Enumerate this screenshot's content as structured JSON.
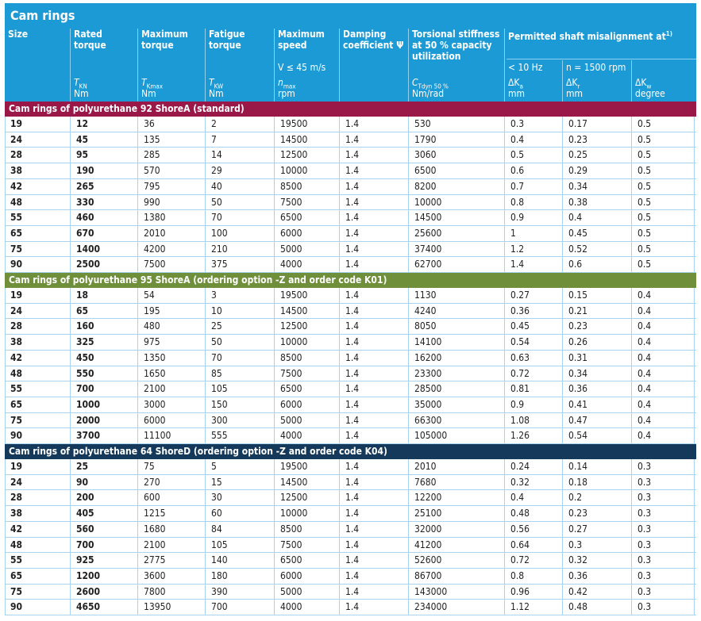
{
  "header": {
    "title": "Cam rings",
    "columns": [
      {
        "label": "Size"
      },
      {
        "label": "Rated torque",
        "symbol": "T",
        "symbol_sub": "KN",
        "unit": "Nm"
      },
      {
        "label": "Maximum torque",
        "symbol": "T",
        "symbol_sub": "Kmax",
        "unit": "Nm"
      },
      {
        "label": "Fatigue torque",
        "symbol": "T",
        "symbol_sub": "KW",
        "unit": "Nm"
      },
      {
        "label": "Maximum speed",
        "condition": "V ≤ 45 m/s",
        "symbol": "n",
        "symbol_sub": "max",
        "unit": "rpm"
      },
      {
        "label": "Damping coefficient Ψ"
      },
      {
        "label": "Torsional stiffness at 50 % capacity utilization",
        "symbol": "C",
        "symbol_sub": "Tdyn 50 %",
        "unit": "Nm/rad"
      },
      {
        "sublabel": "< 10 Hz",
        "symbol": "ΔK",
        "symbol_sub": "a",
        "unit": "mm"
      },
      {
        "sublabel": "n = 1500 rpm",
        "symbol": "ΔK",
        "symbol_sub": "r",
        "unit": "mm"
      },
      {
        "symbol": "ΔK",
        "symbol_sub": "w",
        "unit": "degree"
      }
    ],
    "group": {
      "label": "Permitted shaft misalignment at",
      "note": "1)"
    }
  },
  "sections": [
    {
      "title": "Cam rings of polyurethane 92 ShoreA (standard)",
      "rows": [
        [
          "19",
          "12",
          "36",
          "2",
          "19500",
          "1.4",
          "530",
          "0.3",
          "0.17",
          "0.5"
        ],
        [
          "24",
          "45",
          "135",
          "7",
          "14500",
          "1.4",
          "1790",
          "0.4",
          "0.23",
          "0.5"
        ],
        [
          "28",
          "95",
          "285",
          "14",
          "12500",
          "1.4",
          "3060",
          "0.5",
          "0.25",
          "0.5"
        ],
        [
          "38",
          "190",
          "570",
          "29",
          "10000",
          "1.4",
          "6500",
          "0.6",
          "0.29",
          "0.5"
        ],
        [
          "42",
          "265",
          "795",
          "40",
          "8500",
          "1.4",
          "8200",
          "0.7",
          "0.34",
          "0.5"
        ],
        [
          "48",
          "330",
          "990",
          "50",
          "7500",
          "1.4",
          "10000",
          "0.8",
          "0.38",
          "0.5"
        ],
        [
          "55",
          "460",
          "1380",
          "70",
          "6500",
          "1.4",
          "14500",
          "0.9",
          "0.4",
          "0.5"
        ],
        [
          "65",
          "670",
          "2010",
          "100",
          "6000",
          "1.4",
          "25600",
          "1",
          "0.45",
          "0.5"
        ],
        [
          "75",
          "1400",
          "4200",
          "210",
          "5000",
          "1.4",
          "37400",
          "1.2",
          "0.52",
          "0.5"
        ],
        [
          "90",
          "2500",
          "7500",
          "375",
          "4000",
          "1.4",
          "62700",
          "1.4",
          "0.6",
          "0.5"
        ]
      ]
    },
    {
      "title": "Cam rings of polyurethane 95 ShoreA (ordering option -Z and order code K01)",
      "rows": [
        [
          "19",
          "18",
          "54",
          "3",
          "19500",
          "1.4",
          "1130",
          "0.27",
          "0.15",
          "0.4"
        ],
        [
          "24",
          "65",
          "195",
          "10",
          "14500",
          "1.4",
          "4240",
          "0.36",
          "0.21",
          "0.4"
        ],
        [
          "28",
          "160",
          "480",
          "25",
          "12500",
          "1.4",
          "8050",
          "0.45",
          "0.23",
          "0.4"
        ],
        [
          "38",
          "325",
          "975",
          "50",
          "10000",
          "1.4",
          "14100",
          "0.54",
          "0.26",
          "0.4"
        ],
        [
          "42",
          "450",
          "1350",
          "70",
          "8500",
          "1.4",
          "16200",
          "0.63",
          "0.31",
          "0.4"
        ],
        [
          "48",
          "550",
          "1650",
          "85",
          "7500",
          "1.4",
          "23300",
          "0.72",
          "0.34",
          "0.4"
        ],
        [
          "55",
          "700",
          "2100",
          "105",
          "6500",
          "1.4",
          "28500",
          "0.81",
          "0.36",
          "0.4"
        ],
        [
          "65",
          "1000",
          "3000",
          "150",
          "6000",
          "1.4",
          "35000",
          "0.9",
          "0.41",
          "0.4"
        ],
        [
          "75",
          "2000",
          "6000",
          "300",
          "5000",
          "1.4",
          "66300",
          "1.08",
          "0.47",
          "0.4"
        ],
        [
          "90",
          "3700",
          "11100",
          "555",
          "4000",
          "1.4",
          "105000",
          "1.26",
          "0.54",
          "0.4"
        ]
      ]
    },
    {
      "title": "Cam rings of polyurethane 64 ShoreD (ordering option -Z and order code K04)",
      "rows": [
        [
          "19",
          "25",
          "75",
          "5",
          "19500",
          "1.4",
          "2010",
          "0.24",
          "0.14",
          "0.3"
        ],
        [
          "24",
          "90",
          "270",
          "15",
          "14500",
          "1.4",
          "7680",
          "0.32",
          "0.18",
          "0.3"
        ],
        [
          "28",
          "200",
          "600",
          "30",
          "12500",
          "1.4",
          "12200",
          "0.4",
          "0.2",
          "0.3"
        ],
        [
          "38",
          "405",
          "1215",
          "60",
          "10000",
          "1.4",
          "25100",
          "0.48",
          "0.23",
          "0.3"
        ],
        [
          "42",
          "560",
          "1680",
          "84",
          "8500",
          "1.4",
          "32000",
          "0.56",
          "0.27",
          "0.3"
        ],
        [
          "48",
          "700",
          "2100",
          "105",
          "7500",
          "1.4",
          "41200",
          "0.64",
          "0.3",
          "0.3"
        ],
        [
          "55",
          "925",
          "2775",
          "140",
          "6500",
          "1.4",
          "52600",
          "0.72",
          "0.32",
          "0.3"
        ],
        [
          "65",
          "1200",
          "3600",
          "180",
          "6000",
          "1.4",
          "86700",
          "0.8",
          "0.36",
          "0.3"
        ],
        [
          "75",
          "2600",
          "7800",
          "390",
          "5000",
          "1.4",
          "143000",
          "0.96",
          "0.42",
          "0.3"
        ],
        [
          "90",
          "4650",
          "13950",
          "700",
          "4000",
          "1.4",
          "234000",
          "1.12",
          "0.48",
          "0.3"
        ]
      ]
    }
  ]
}
